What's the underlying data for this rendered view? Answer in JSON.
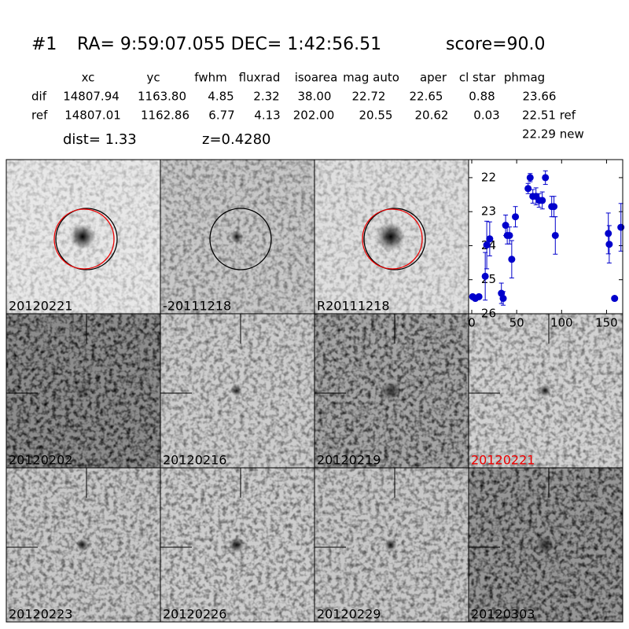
{
  "header": {
    "id": "#1",
    "coords": "RA= 9:59:07.055 DEC= 1:42:56.51",
    "score": "score=90.0"
  },
  "table": {
    "columns": [
      "xc",
      "yc",
      "fwhm",
      "fluxrad",
      "isoarea",
      "mag auto",
      "aper",
      "cl star",
      "phmag"
    ],
    "rows": [
      {
        "label": "dif",
        "values": [
          "14807.94",
          "1163.80",
          "4.85",
          "2.32",
          "38.00",
          "22.72",
          "22.65",
          "0.88",
          "23.66"
        ]
      },
      {
        "label": "ref",
        "values": [
          "14807.01",
          "1162.86",
          "6.77",
          "4.13",
          "202.00",
          "20.55",
          "20.62",
          "0.03",
          "22.51 ref"
        ]
      }
    ],
    "new": "22.29 new"
  },
  "dist": "dist=  1.33",
  "redshift": "z=0.4280",
  "panels": [
    "20120221",
    "-20111218",
    "R20111218",
    "20120202",
    "20120216",
    "20120219",
    "20120221",
    "20120223",
    "20120226",
    "20120229",
    "20120303"
  ],
  "chart_data": {
    "type": "errorbar",
    "color": "#0000cc",
    "x": [
      1,
      4,
      8,
      15,
      16.7,
      20,
      33,
      35,
      37.7,
      39.5,
      42,
      44.5,
      48.6,
      62.7,
      65,
      68,
      71.5,
      75,
      78.5,
      82,
      89,
      91.5,
      93,
      152,
      153,
      159,
      166
    ],
    "values": [
      25.5,
      25.55,
      25.5,
      24.9,
      23.98,
      23.8,
      25.4,
      25.55,
      23.4,
      23.7,
      23.7,
      24.4,
      23.15,
      22.32,
      22.0,
      22.55,
      22.55,
      22.67,
      22.67,
      22.0,
      22.85,
      22.85,
      23.7,
      23.64,
      23.96,
      25.55,
      23.46
    ],
    "errors": [
      0.05,
      0.05,
      0.05,
      0.7,
      0.7,
      0.5,
      0.3,
      0.2,
      0.3,
      0.25,
      0.25,
      0.55,
      0.3,
      0.15,
      0.12,
      0.2,
      0.25,
      0.2,
      0.25,
      0.2,
      0.3,
      0.3,
      0.55,
      0.6,
      0.55,
      0.05,
      0.7
    ],
    "xlim": [
      -3.5,
      168
    ],
    "ylim": [
      26,
      21.47
    ],
    "xticks": [
      0,
      50,
      100,
      150
    ],
    "yticks": [
      22,
      23,
      24,
      25,
      26
    ]
  }
}
